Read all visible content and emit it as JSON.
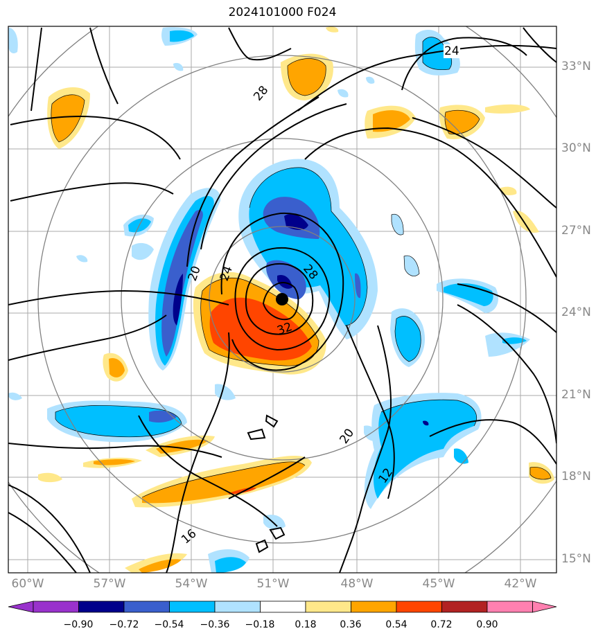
{
  "title": "2024101000 F024",
  "latitude_labels": [
    "33°N",
    "30°N",
    "27°N",
    "24°N",
    "21°N",
    "18°N",
    "15°N"
  ],
  "longitude_labels": [
    "60°W",
    "57°W",
    "54°W",
    "51°W",
    "48°W",
    "45°W",
    "42°W"
  ],
  "contour_labels": [
    "24",
    "28",
    "20",
    "24",
    "28",
    "32",
    "20",
    "12",
    "16"
  ],
  "colorbar": {
    "ticks": [
      "−0.90",
      "−0.72",
      "−0.54",
      "−0.36",
      "−0.18",
      "0.18",
      "0.36",
      "0.54",
      "0.72",
      "0.90"
    ],
    "colors": [
      "#9932cc",
      "#00008b",
      "#3a5fcd",
      "#00bfff",
      "#b0e2ff",
      "#ffffff",
      "#ffe88a",
      "#ffa500",
      "#ff4500",
      "#b22222",
      "#ff80b0"
    ]
  },
  "storm_center": {
    "lat": 24.5,
    "lon": "50.7°W"
  },
  "colors": {
    "gridline": "#aaaaaa",
    "range_ring": "#808080",
    "contour": "#000000",
    "axis_label": "#888888"
  }
}
